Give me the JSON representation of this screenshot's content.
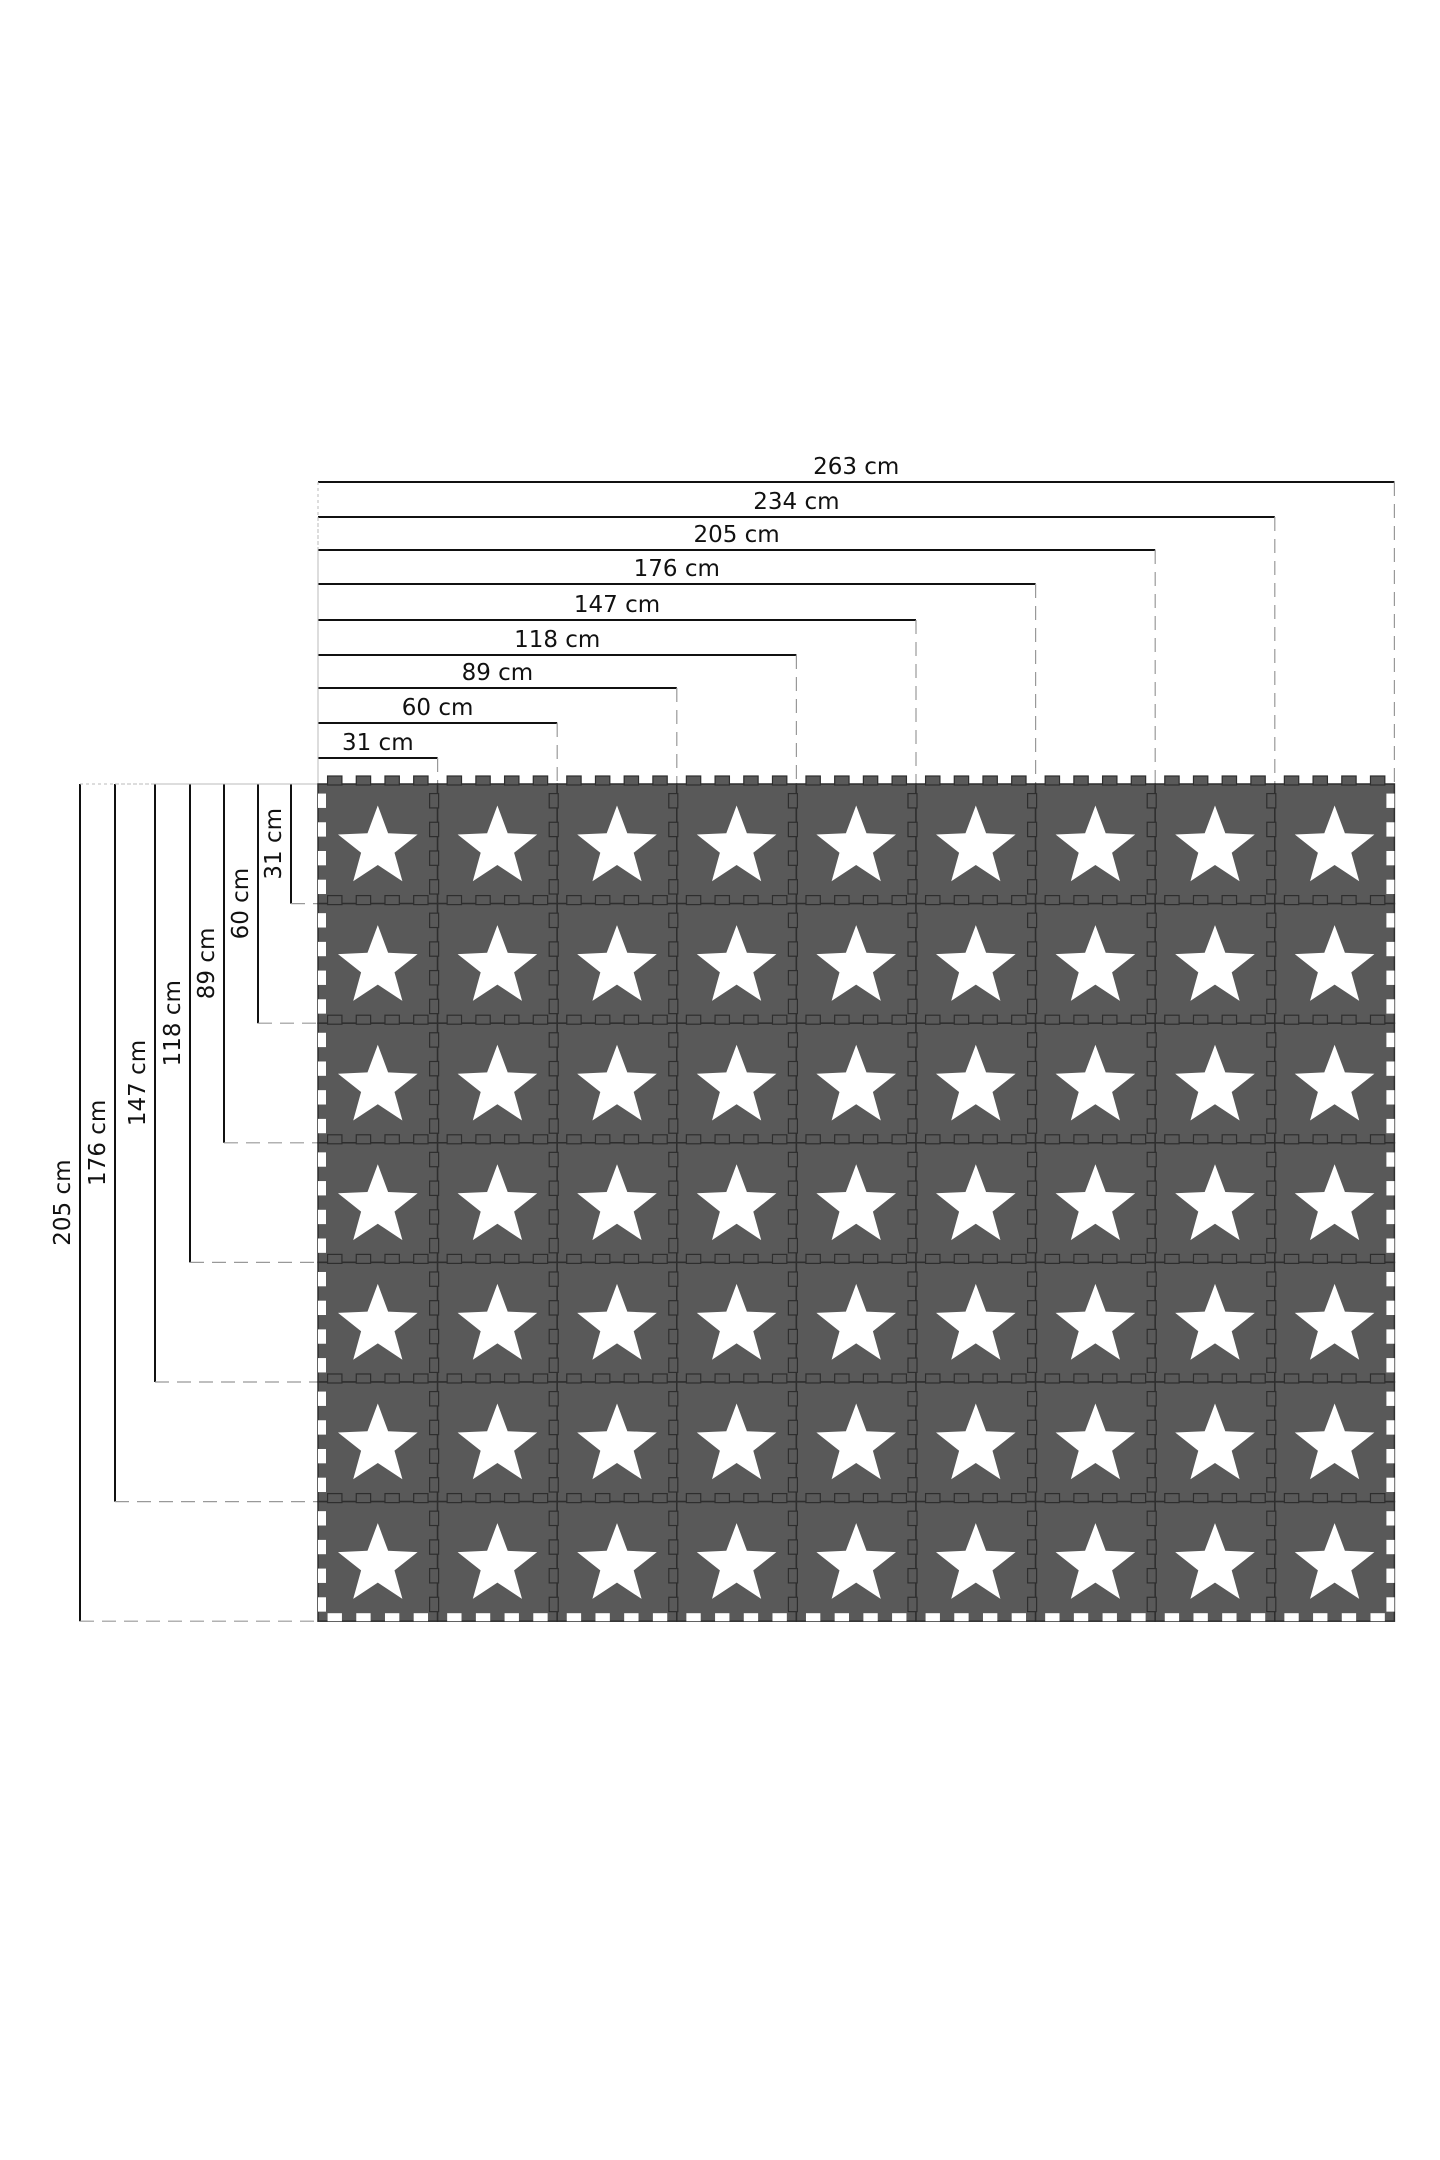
{
  "mat": {
    "columns": 9,
    "rows": 7,
    "tile_color": "#595959",
    "seam_color": "#2e2e2e",
    "star_color": "#ffffff",
    "motif_icon": "star-icon"
  },
  "top_dimensions": [
    "31 cm",
    "60 cm",
    "89 cm",
    "118 cm",
    "147 cm",
    "176 cm",
    "205 cm",
    "234 cm",
    "263 cm"
  ],
  "left_dimensions": [
    "31 cm",
    "60 cm",
    "89 cm",
    "118 cm",
    "147 cm",
    "176 cm",
    "205 cm"
  ]
}
